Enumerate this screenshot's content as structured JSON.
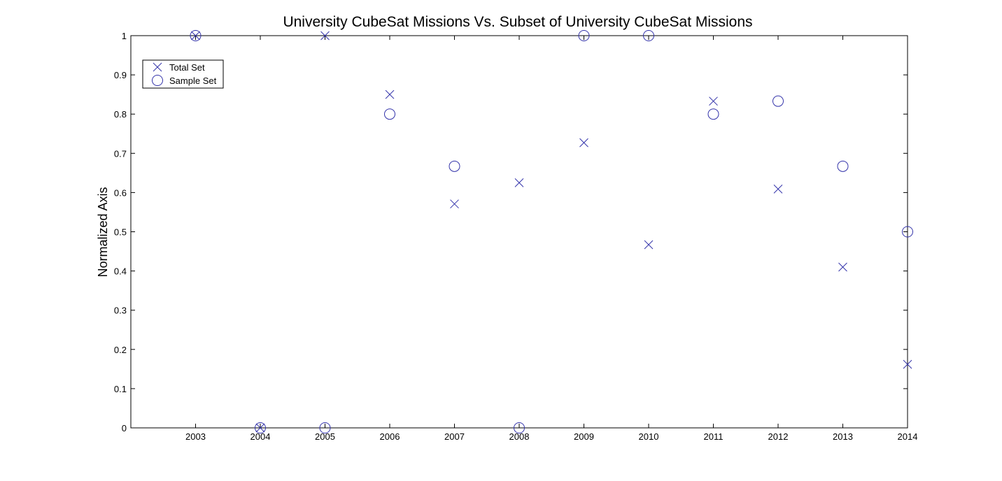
{
  "chart_data": {
    "type": "scatter",
    "title": "University CubeSat Missions Vs. Subset of University CubeSat Missions",
    "xlabel": "",
    "ylabel": "Normalized Axis",
    "x_ticks": [
      "2003",
      "2004",
      "2005",
      "2006",
      "2007",
      "2008",
      "2009",
      "2010",
      "2011",
      "2012",
      "2013",
      "2014"
    ],
    "y_ticks": [
      "0",
      "0.1",
      "0.2",
      "0.3",
      "0.4",
      "0.5",
      "0.6",
      "0.7",
      "0.8",
      "0.9",
      "1"
    ],
    "xlim": [
      2002,
      2014
    ],
    "ylim": [
      0,
      1
    ],
    "grid": false,
    "legend_position": "top-left",
    "colors": {
      "marker": "#3333aa",
      "axis": "#000000"
    },
    "series": [
      {
        "name": "Total Set",
        "marker": "x",
        "points": [
          {
            "x": 2003,
            "y": 1.0
          },
          {
            "x": 2004,
            "y": 0.0
          },
          {
            "x": 2005,
            "y": 1.0
          },
          {
            "x": 2006,
            "y": 0.85
          },
          {
            "x": 2007,
            "y": 0.571
          },
          {
            "x": 2008,
            "y": 0.625
          },
          {
            "x": 2009,
            "y": 0.727
          },
          {
            "x": 2010,
            "y": 0.467
          },
          {
            "x": 2011,
            "y": 0.833
          },
          {
            "x": 2012,
            "y": 0.609
          },
          {
            "x": 2013,
            "y": 0.41
          },
          {
            "x": 2014,
            "y": 0.162
          }
        ]
      },
      {
        "name": "Sample Set",
        "marker": "o",
        "points": [
          {
            "x": 2003,
            "y": 1.0
          },
          {
            "x": 2004,
            "y": 0.0
          },
          {
            "x": 2005,
            "y": 0.0
          },
          {
            "x": 2006,
            "y": 0.8
          },
          {
            "x": 2007,
            "y": 0.667
          },
          {
            "x": 2008,
            "y": 0.0
          },
          {
            "x": 2009,
            "y": 1.0
          },
          {
            "x": 2010,
            "y": 1.0
          },
          {
            "x": 2011,
            "y": 0.8
          },
          {
            "x": 2012,
            "y": 0.833
          },
          {
            "x": 2013,
            "y": 0.667
          },
          {
            "x": 2014,
            "y": 0.5
          }
        ]
      }
    ]
  }
}
